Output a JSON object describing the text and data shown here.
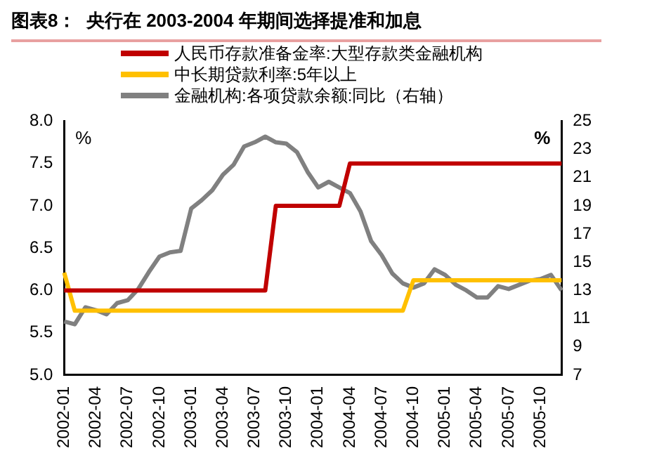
{
  "chart_data": {
    "type": "line",
    "title": "图表8：  央行在 2003-2004 年期间选择提准和加息",
    "categories": [
      "2002-01",
      null,
      null,
      "2002-04",
      null,
      null,
      "2002-07",
      null,
      null,
      "2002-10",
      null,
      null,
      "2003-01",
      null,
      null,
      "2003-04",
      null,
      null,
      "2003-07",
      null,
      null,
      "2003-10",
      null,
      null,
      "2004-01",
      null,
      null,
      "2004-04",
      null,
      null,
      "2004-07",
      null,
      null,
      "2004-10",
      null,
      null,
      "2005-01",
      null,
      null,
      "2005-04",
      null,
      null,
      "2005-07",
      null,
      null,
      "2005-10",
      null,
      null
    ],
    "series": [
      {
        "name": "人民币存款准备金率:大型存款类金融机构",
        "color": "#c00000",
        "values": [
          6,
          6,
          6,
          6,
          6,
          6,
          6,
          6,
          6,
          6,
          6,
          6,
          6,
          6,
          6,
          6,
          6,
          6,
          6,
          6,
          7,
          7,
          7,
          7,
          7,
          7,
          7,
          7.5,
          7.5,
          7.5,
          7.5,
          7.5,
          7.5,
          7.5,
          7.5,
          7.5,
          7.5,
          7.5,
          7.5,
          7.5,
          7.5,
          7.5,
          7.5,
          7.5,
          7.5,
          7.5,
          7.5,
          7.5
        ]
      },
      {
        "name": "中长期贷款利率:5年以上",
        "color": "#ffc000",
        "values": [
          6.21,
          5.76,
          5.76,
          5.76,
          5.76,
          5.76,
          5.76,
          5.76,
          5.76,
          5.76,
          5.76,
          5.76,
          5.76,
          5.76,
          5.76,
          5.76,
          5.76,
          5.76,
          5.76,
          5.76,
          5.76,
          5.76,
          5.76,
          5.76,
          5.76,
          5.76,
          5.76,
          5.76,
          5.76,
          5.76,
          5.76,
          5.76,
          5.76,
          6.12,
          6.12,
          6.12,
          6.12,
          6.12,
          6.12,
          6.12,
          6.12,
          6.12,
          6.12,
          6.12,
          6.12,
          6.12,
          6.12,
          6.12
        ]
      },
      {
        "name": "金融机构:各项贷款余额:同比（右轴）",
        "color": "#808080",
        "axis": "y2",
        "values": [
          10.8,
          10.6,
          11.8,
          11.6,
          11.3,
          12.1,
          12.3,
          13.1,
          14.3,
          15.4,
          15.7,
          15.8,
          18.8,
          19.4,
          20.1,
          21.2,
          21.9,
          23.2,
          23.5,
          23.9,
          23.5,
          23.4,
          22.8,
          21.4,
          20.3,
          20.7,
          20.3,
          19.9,
          18.6,
          16.5,
          15.5,
          14.2,
          13.5,
          13.2,
          13.5,
          14.5,
          14.1,
          13.4,
          13.0,
          12.5,
          12.5,
          13.3,
          13.1,
          13.4,
          13.7,
          13.8,
          14.1,
          13.0
        ]
      }
    ],
    "ylabel": "%",
    "y2label": "%",
    "ylim": [
      5,
      8
    ],
    "yticks": [
      {
        "value": 5,
        "label": "5.0"
      },
      {
        "value": 5.5,
        "label": "5.5"
      },
      {
        "value": 6,
        "label": "6.0"
      },
      {
        "value": 6.5,
        "label": "6.5"
      },
      {
        "value": 7,
        "label": "7.0"
      },
      {
        "value": 7.5,
        "label": "7.5"
      },
      {
        "value": 8,
        "label": "8.0"
      }
    ],
    "y2lim": [
      7,
      25
    ],
    "y2ticks": [
      7,
      9,
      11,
      13,
      15,
      17,
      19,
      21,
      23,
      25
    ],
    "legend": "top",
    "grid": false,
    "marker": "none",
    "line_style": "solid"
  }
}
